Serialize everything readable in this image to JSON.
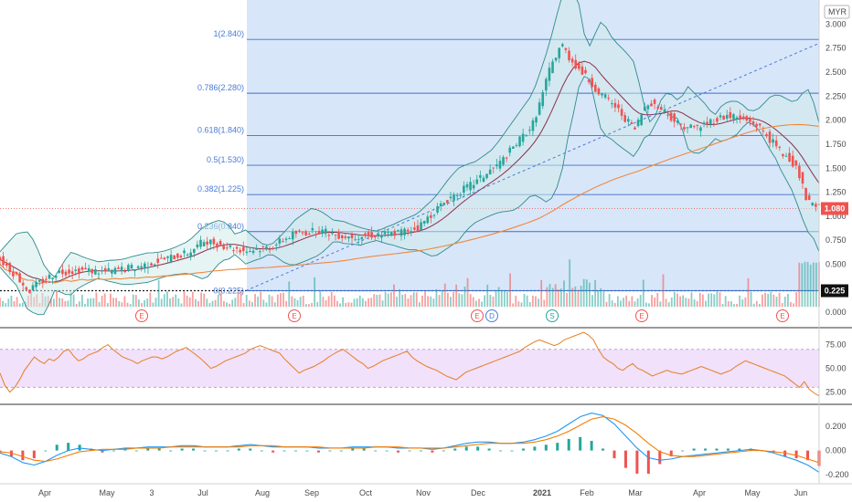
{
  "chart": {
    "currency": "MYR",
    "price_tag": "1.080",
    "low_tag": "0.225",
    "low_line_label": "0(0.225)"
  },
  "colors": {
    "up": "#26a69a",
    "down": "#ef5350",
    "fib_line": "#3f6fc8",
    "fib_bg": "#d4e3f8",
    "bb_line": "#2e8b8b",
    "bb_fill": "#cfe9e9",
    "ma_short": "#8b2f4d",
    "ma_long": "#f0883c",
    "trend": "#4a7bd6",
    "rsi_line": "#e67e22",
    "rsi_band": "#f1e1fb",
    "macd_line": "#2196f3",
    "signal_line": "#f57c00"
  },
  "chart_data": [
    {
      "type": "candlestick",
      "title": "",
      "x_ticks": [
        "Apr",
        "May",
        "3",
        "Jul",
        "Aug",
        "Sep",
        "Oct",
        "Nov",
        "Dec",
        "2021",
        "Feb",
        "Mar",
        "Apr",
        "May",
        "Jun"
      ],
      "y_ticks": [
        "3.000",
        "2.750",
        "2.500",
        "2.250",
        "2.000",
        "1.750",
        "1.500",
        "1.250",
        "1.000",
        "0.750",
        "0.500",
        "0.250",
        "0.000"
      ],
      "ylim": [
        -0.15,
        3.25
      ],
      "grid": false,
      "close_path": [
        [
          0,
          0.55
        ],
        [
          0.02,
          0.38
        ],
        [
          0.035,
          0.22
        ],
        [
          0.05,
          0.32
        ],
        [
          0.07,
          0.42
        ],
        [
          0.1,
          0.44
        ],
        [
          0.13,
          0.42
        ],
        [
          0.17,
          0.48
        ],
        [
          0.2,
          0.55
        ],
        [
          0.23,
          0.62
        ],
        [
          0.25,
          0.75
        ],
        [
          0.27,
          0.7
        ],
        [
          0.3,
          0.64
        ],
        [
          0.33,
          0.68
        ],
        [
          0.36,
          0.82
        ],
        [
          0.39,
          0.85
        ],
        [
          0.42,
          0.79
        ],
        [
          0.45,
          0.8
        ],
        [
          0.48,
          0.82
        ],
        [
          0.51,
          0.88
        ],
        [
          0.53,
          1.05
        ],
        [
          0.55,
          1.2
        ],
        [
          0.58,
          1.35
        ],
        [
          0.61,
          1.55
        ],
        [
          0.63,
          1.75
        ],
        [
          0.65,
          1.95
        ],
        [
          0.66,
          2.2
        ],
        [
          0.67,
          2.5
        ],
        [
          0.685,
          2.8
        ],
        [
          0.695,
          2.65
        ],
        [
          0.71,
          2.5
        ],
        [
          0.73,
          2.3
        ],
        [
          0.75,
          2.15
        ],
        [
          0.76,
          2.05
        ],
        [
          0.775,
          1.9
        ],
        [
          0.79,
          2.2
        ],
        [
          0.81,
          2.1
        ],
        [
          0.83,
          1.95
        ],
        [
          0.85,
          1.92
        ],
        [
          0.87,
          2.0
        ],
        [
          0.89,
          2.05
        ],
        [
          0.91,
          2.0
        ],
        [
          0.925,
          1.95
        ],
        [
          0.94,
          1.8
        ],
        [
          0.955,
          1.65
        ],
        [
          0.965,
          1.6
        ],
        [
          0.975,
          1.45
        ],
        [
          0.985,
          1.15
        ],
        [
          1,
          1.08
        ]
      ],
      "fibonacci": {
        "levels": [
          {
            "label": "1(2.840)",
            "price": 2.84
          },
          {
            "label": "0.786(2.280)",
            "price": 2.28
          },
          {
            "label": "0.618(1.840)",
            "price": 1.84
          },
          {
            "label": "0.5(1.530)",
            "price": 1.53
          },
          {
            "label": "0.382(1.225)",
            "price": 1.225
          },
          {
            "label": "0.236(0.840)",
            "price": 0.84
          }
        ],
        "base_price": 0.225
      },
      "events": [
        "E",
        "E",
        "E",
        "D",
        "S",
        "E",
        "E"
      ],
      "last_price": 1.08,
      "low_price": 0.225
    },
    {
      "type": "line",
      "title": "",
      "name": "",
      "y_ticks": [
        "75.00",
        "50.00",
        "25.00"
      ],
      "ylim": [
        15,
        90
      ],
      "band": [
        30,
        70
      ],
      "values": [
        45,
        32,
        25,
        30,
        38,
        48,
        55,
        62,
        58,
        55,
        60,
        58,
        62,
        68,
        70,
        63,
        58,
        60,
        64,
        66,
        68,
        72,
        75,
        70,
        66,
        62,
        60,
        58,
        55,
        58,
        60,
        62,
        62,
        60,
        62,
        65,
        68,
        70,
        72,
        68,
        64,
        60,
        55,
        50,
        52,
        55,
        58,
        60,
        62,
        64,
        66,
        70,
        72,
        74,
        72,
        70,
        68,
        66,
        60,
        55,
        50,
        45,
        48,
        50,
        52,
        55,
        58,
        62,
        65,
        68,
        70,
        66,
        62,
        58,
        55,
        50,
        52,
        55,
        58,
        60,
        62,
        64,
        66,
        68,
        62,
        58,
        55,
        52,
        50,
        48,
        45,
        42,
        40,
        38,
        42,
        46,
        48,
        50,
        52,
        54,
        56,
        58,
        60,
        62,
        64,
        66,
        68,
        72,
        75,
        78,
        80,
        78,
        76,
        74,
        76,
        80,
        82,
        84,
        86,
        88,
        85,
        80,
        70,
        62,
        58,
        55,
        50,
        48,
        52,
        55,
        50,
        48,
        45,
        42,
        44,
        46,
        48,
        46,
        45,
        44,
        46,
        48,
        50,
        52,
        50,
        48,
        46,
        44,
        46,
        48,
        52,
        55,
        58,
        56,
        54,
        52,
        50,
        48,
        46,
        44,
        42,
        38,
        34,
        30,
        36,
        28,
        24,
        21
      ]
    },
    {
      "type": "line",
      "title": "",
      "name": "",
      "y_ticks": [
        "0.200",
        "0.000",
        "-0.200"
      ],
      "ylim": [
        -0.26,
        0.36
      ],
      "macd": [
        -0.02,
        -0.05,
        -0.1,
        -0.12,
        -0.09,
        -0.04,
        0.0,
        0.02,
        0.01,
        0.0,
        0.01,
        0.02,
        0.02,
        0.03,
        0.03,
        0.03,
        0.04,
        0.04,
        0.03,
        0.03,
        0.03,
        0.04,
        0.05,
        0.04,
        0.03,
        0.03,
        0.03,
        0.03,
        0.02,
        0.02,
        0.02,
        0.03,
        0.03,
        0.03,
        0.03,
        0.02,
        0.02,
        0.02,
        0.01,
        0.02,
        0.04,
        0.06,
        0.07,
        0.07,
        0.06,
        0.06,
        0.07,
        0.09,
        0.12,
        0.16,
        0.22,
        0.28,
        0.31,
        0.29,
        0.22,
        0.12,
        0.02,
        -0.06,
        -0.08,
        -0.07,
        -0.05,
        -0.04,
        -0.03,
        -0.02,
        -0.01,
        0.0,
        0.01,
        0.0,
        -0.02,
        -0.05,
        -0.08,
        -0.12,
        -0.18
      ],
      "signal": [
        -0.01,
        -0.02,
        -0.05,
        -0.08,
        -0.09,
        -0.07,
        -0.04,
        -0.01,
        0.0,
        0.01,
        0.01,
        0.01,
        0.02,
        0.02,
        0.02,
        0.03,
        0.03,
        0.03,
        0.03,
        0.03,
        0.03,
        0.03,
        0.04,
        0.04,
        0.04,
        0.03,
        0.03,
        0.03,
        0.03,
        0.02,
        0.02,
        0.02,
        0.02,
        0.03,
        0.03,
        0.03,
        0.02,
        0.02,
        0.02,
        0.02,
        0.03,
        0.04,
        0.05,
        0.06,
        0.06,
        0.06,
        0.06,
        0.07,
        0.09,
        0.12,
        0.16,
        0.21,
        0.26,
        0.28,
        0.26,
        0.21,
        0.14,
        0.06,
        -0.01,
        -0.04,
        -0.05,
        -0.05,
        -0.04,
        -0.03,
        -0.02,
        -0.01,
        0.0,
        0.0,
        -0.01,
        -0.02,
        -0.04,
        -0.07,
        -0.1
      ]
    }
  ]
}
